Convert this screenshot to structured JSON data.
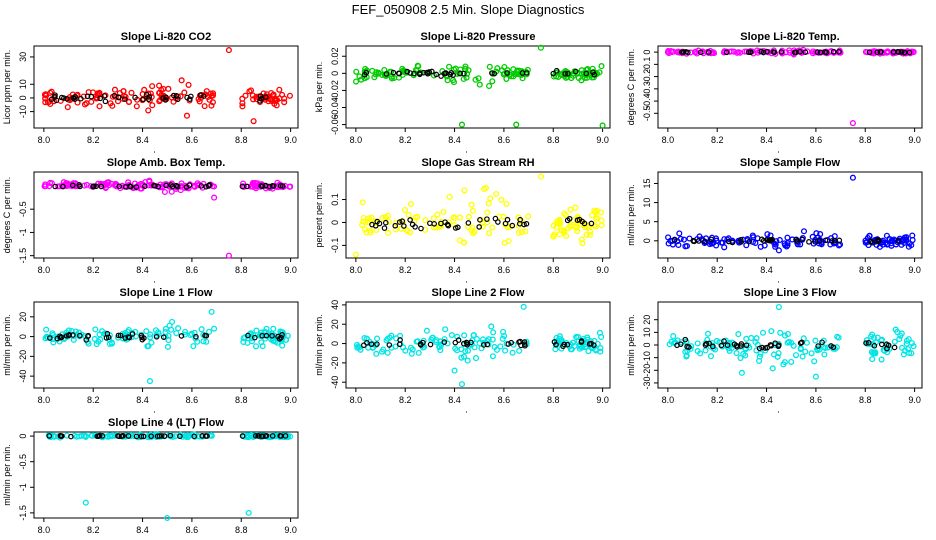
{
  "figure": {
    "title": "FEF_050908  2.5 Min. Slope Diagnostics"
  },
  "chart_data": [
    {
      "type": "scatter",
      "title": "Slope Li-820 CO2",
      "xlabel": "",
      "ylabel": "Licor ppm per min.",
      "xlim": [
        7.96,
        9.03
      ],
      "ylim": [
        -22,
        38
      ],
      "xticks": [
        8.0,
        8.2,
        8.4,
        8.6,
        8.8,
        9.0
      ],
      "yticks": [
        -10,
        0,
        10,
        30
      ],
      "color": "#ff0000",
      "spread": 5,
      "outliers": [
        [
          8.75,
          35
        ],
        [
          8.85,
          -17
        ],
        [
          8.58,
          -13
        ]
      ]
    },
    {
      "type": "scatter",
      "title": "Slope Li-820 Pressure",
      "xlabel": "",
      "ylabel": "kPa per min.",
      "xlim": [
        7.96,
        9.03
      ],
      "ylim": [
        -0.064,
        0.032
      ],
      "xticks": [
        8.0,
        8.2,
        8.4,
        8.6,
        8.8,
        9.0
      ],
      "yticks": [
        -0.06,
        -0.04,
        -0.02,
        0.0,
        0.02
      ],
      "color": "#00cc00",
      "spread": 0.006,
      "outliers": [
        [
          8.75,
          0.03
        ],
        [
          8.43,
          -0.06
        ],
        [
          8.65,
          -0.06
        ],
        [
          9.0,
          -0.061
        ]
      ]
    },
    {
      "type": "scatter",
      "title": "Slope Li-820 Temp.",
      "xlabel": "",
      "ylabel": "degrees C per min.",
      "xlim": [
        7.96,
        9.03
      ],
      "ylim": [
        -0.62,
        0.05
      ],
      "xticks": [
        8.0,
        8.2,
        8.4,
        8.6,
        8.8,
        9.0
      ],
      "yticks": [
        -0.5,
        -0.4,
        -0.3,
        -0.2,
        -0.1,
        0.0
      ],
      "color": "#ff00ff",
      "spread": 0.01,
      "outliers": [
        [
          8.75,
          -0.58
        ]
      ]
    },
    {
      "type": "scatter",
      "title": "Slope Amb. Box Temp.",
      "xlabel": "",
      "ylabel": "degrees C per min.",
      "xlim": [
        7.96,
        9.03
      ],
      "ylim": [
        -1.55,
        0.3
      ],
      "xticks": [
        8.0,
        8.2,
        8.4,
        8.6,
        8.8,
        9.0
      ],
      "yticks": [
        -1.5,
        -1.0,
        -0.5
      ],
      "color": "#ff00ff",
      "spread": 0.06,
      "outliers": [
        [
          8.75,
          -1.5
        ],
        [
          8.69,
          -0.25
        ]
      ]
    },
    {
      "type": "scatter",
      "title": "Slope Gas Stream RH",
      "xlabel": "",
      "ylabel": "percent per min.",
      "xlim": [
        7.96,
        9.03
      ],
      "ylim": [
        -0.155,
        0.22
      ],
      "xticks": [
        8.0,
        8.2,
        8.4,
        8.6,
        8.8,
        9.0
      ],
      "yticks": [
        -0.1,
        0.0,
        0.1
      ],
      "color": "#ffff00",
      "spread": 0.06,
      "outliers": [
        [
          8.75,
          0.2
        ],
        [
          8.0,
          -0.14
        ]
      ]
    },
    {
      "type": "scatter",
      "title": "Slope Sample Flow",
      "xlabel": "",
      "ylabel": "ml/min per min.",
      "xlim": [
        7.96,
        9.03
      ],
      "ylim": [
        -4.5,
        18
      ],
      "xticks": [
        8.0,
        8.2,
        8.4,
        8.6,
        8.8,
        9.0
      ],
      "yticks": [
        0,
        5,
        10,
        15
      ],
      "color": "#0000ff",
      "spread": 1.2,
      "outliers": [
        [
          8.75,
          16.5
        ],
        [
          8.45,
          -2.5
        ]
      ]
    },
    {
      "type": "scatter",
      "title": "Slope Line 1 Flow",
      "xlabel": "",
      "ylabel": "ml/min per min.",
      "xlim": [
        7.96,
        9.03
      ],
      "ylim": [
        -52,
        35
      ],
      "xticks": [
        8.0,
        8.2,
        8.4,
        8.6,
        8.8,
        9.0
      ],
      "yticks": [
        -40,
        -20,
        0,
        20
      ],
      "color": "#00e5e5",
      "spread": 7,
      "outliers": [
        [
          8.43,
          -45
        ],
        [
          8.68,
          25
        ]
      ]
    },
    {
      "type": "scatter",
      "title": "Slope Line 2 Flow",
      "xlabel": "",
      "ylabel": "ml/min per min.",
      "xlim": [
        7.96,
        9.03
      ],
      "ylim": [
        -46,
        43
      ],
      "xticks": [
        8.0,
        8.2,
        8.4,
        8.6,
        8.8,
        9.0
      ],
      "yticks": [
        -40,
        -20,
        0,
        20,
        40
      ],
      "color": "#00e5e5",
      "spread": 8,
      "outliers": [
        [
          8.43,
          -42
        ],
        [
          8.68,
          38
        ],
        [
          8.4,
          -28
        ]
      ]
    },
    {
      "type": "scatter",
      "title": "Slope Line 3 Flow",
      "xlabel": "",
      "ylabel": "ml/min per min.",
      "xlim": [
        7.96,
        9.03
      ],
      "ylim": [
        -34,
        34
      ],
      "xticks": [
        8.0,
        8.2,
        8.4,
        8.6,
        8.8,
        9.0
      ],
      "yticks": [
        -30,
        -20,
        -10,
        0,
        10,
        20
      ],
      "color": "#00e5e5",
      "spread": 8,
      "outliers": [
        [
          8.45,
          30
        ],
        [
          8.6,
          -25
        ],
        [
          8.3,
          -22
        ]
      ]
    },
    {
      "type": "scatter",
      "title": "Slope Line 4 (LT) Flow",
      "xlabel": "",
      "ylabel": "ml/min per min.",
      "xlim": [
        7.96,
        9.03
      ],
      "ylim": [
        -1.6,
        0.08
      ],
      "xticks": [
        8.0,
        8.2,
        8.4,
        8.6,
        8.8,
        9.0
      ],
      "yticks": [
        -1.5,
        -1.0,
        -0.5,
        0.0
      ],
      "color": "#00e5e5",
      "spread": 0.02,
      "outliers": [
        [
          8.17,
          -1.3
        ],
        [
          8.5,
          -1.6
        ],
        [
          8.83,
          -1.5
        ]
      ]
    }
  ]
}
